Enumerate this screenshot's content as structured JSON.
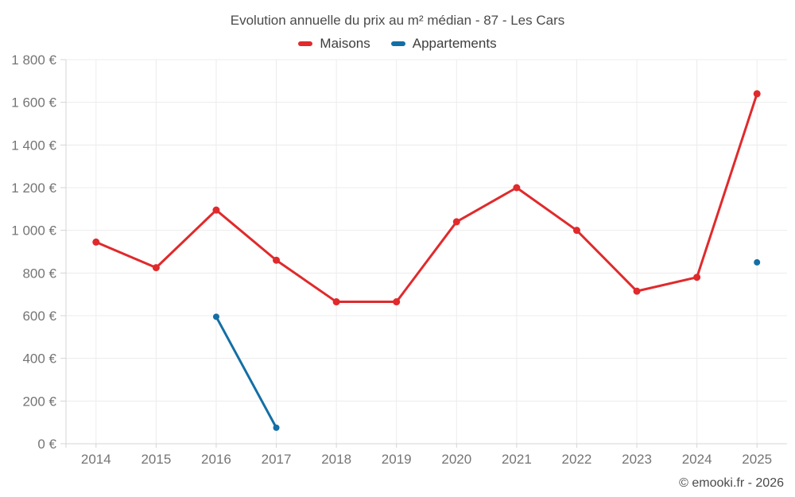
{
  "title": "Evolution annuelle du prix au m² médian - 87 - Les Cars",
  "footer": "© emooki.fr - 2026",
  "chart_data": {
    "type": "line",
    "title": "Evolution annuelle du prix au m² médian - 87 - Les Cars",
    "categories": [
      "2014",
      "2015",
      "2016",
      "2017",
      "2018",
      "2019",
      "2020",
      "2021",
      "2022",
      "2023",
      "2024",
      "2025"
    ],
    "series": [
      {
        "name": "Maisons",
        "color": "#e02a2c",
        "values": [
          945,
          825,
          1095,
          860,
          665,
          665,
          1040,
          1200,
          1000,
          715,
          780,
          1640
        ]
      },
      {
        "name": "Appartements",
        "color": "#136fa5",
        "values": [
          null,
          null,
          595,
          75,
          null,
          null,
          null,
          null,
          null,
          null,
          null,
          850
        ]
      }
    ],
    "xlabel": "",
    "ylabel": "",
    "ylim": [
      0,
      1800
    ],
    "y_tick_step": 200,
    "y_tick_labels": [
      "0 €",
      "200 €",
      "400 €",
      "600 €",
      "800 €",
      "1 000 €",
      "1 200 €",
      "1 400 €",
      "1 600 €",
      "1 800 €"
    ],
    "grid": true,
    "legend_position": "top",
    "axis_label_color": "#757575",
    "grid_color": "#ececec",
    "axis_line_color": "#d4d4d4"
  }
}
